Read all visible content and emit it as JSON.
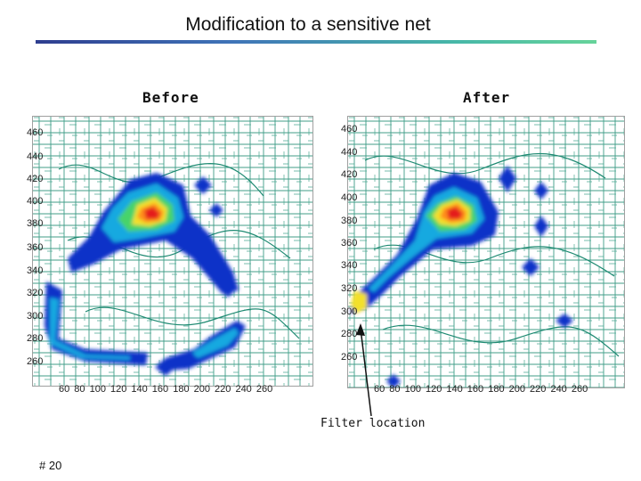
{
  "title": "Modification to a sensitive net",
  "before_label": "Before",
  "after_label": "After",
  "y_tick_labels": [
    "460",
    "440",
    "420",
    "400",
    "380",
    "360",
    "340",
    "320",
    "300",
    "280",
    "260"
  ],
  "x_axis_text": "60 80 100 120 140 160 180 200 220 240 260",
  "callout": "Filter location",
  "page_number": "# 20",
  "colors": {
    "title_rule_left": "#2e3d8f",
    "title_rule_right": "#66d39a",
    "routing": "#1e8a72",
    "heat_blue": "#1030c8",
    "heat_red": "#e41e1e"
  }
}
